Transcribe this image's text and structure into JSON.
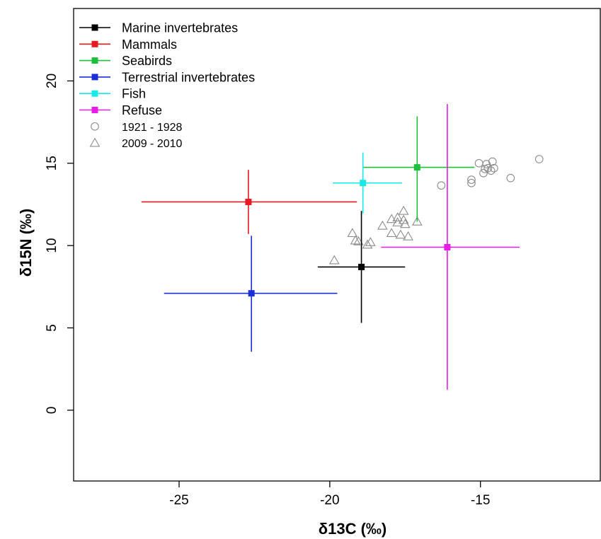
{
  "chart_data": {
    "type": "scatter",
    "xlabel": "δ13C (‰)",
    "ylabel": "δ15N (‰)",
    "xlim": [
      -28.5,
      -11.0
    ],
    "ylim": [
      -4.3,
      24.4
    ],
    "xticks": [
      -25,
      -20,
      -15
    ],
    "yticks": [
      0,
      5,
      10,
      15,
      20
    ],
    "grid": false,
    "legend_position": "top-left",
    "series": [
      {
        "name": "Marine invertebrates",
        "color": "#000000",
        "x": -18.95,
        "y": 8.7,
        "x_range": [
          -20.4,
          -17.5
        ],
        "y_range": [
          5.3,
          12.1
        ]
      },
      {
        "name": "Mammals",
        "color": "#e8191f",
        "x": -22.7,
        "y": 12.65,
        "x_range": [
          -26.25,
          -19.1
        ],
        "y_range": [
          10.7,
          14.6
        ]
      },
      {
        "name": "Seabirds",
        "color": "#1dbf3c",
        "x": -17.1,
        "y": 14.75,
        "x_range": [
          -18.9,
          -15.2
        ],
        "y_range": [
          11.45,
          17.85
        ]
      },
      {
        "name": "Terrestrial invertebrates",
        "color": "#1b2fd9",
        "x": -22.6,
        "y": 7.1,
        "x_range": [
          -25.5,
          -19.75
        ],
        "y_range": [
          3.55,
          10.6
        ]
      },
      {
        "name": "Fish",
        "color": "#18e8e8",
        "x": -18.9,
        "y": 13.8,
        "x_range": [
          -19.9,
          -17.6
        ],
        "y_range": [
          11.95,
          15.65
        ]
      },
      {
        "name": "Refuse",
        "color": "#e81be8",
        "x": -16.1,
        "y": 9.9,
        "x_range": [
          -18.3,
          -13.7
        ],
        "y_range": [
          1.25,
          18.6
        ]
      }
    ],
    "point_series": [
      {
        "name": "1921 - 1928",
        "marker": "circle",
        "color": "#8c8c8c",
        "points": [
          [
            -16.3,
            13.65
          ],
          [
            -15.3,
            14.0
          ],
          [
            -15.3,
            13.8
          ],
          [
            -15.05,
            15.0
          ],
          [
            -14.85,
            14.65
          ],
          [
            -14.9,
            14.4
          ],
          [
            -14.75,
            14.7
          ],
          [
            -14.8,
            14.95
          ],
          [
            -14.6,
            15.1
          ],
          [
            -14.65,
            14.55
          ],
          [
            -14.55,
            14.7
          ],
          [
            -14.0,
            14.1
          ],
          [
            -13.05,
            15.25
          ]
        ]
      },
      {
        "name": "2009 - 2010",
        "marker": "triangle",
        "color": "#8c8c8c",
        "points": [
          [
            -19.85,
            9.1
          ],
          [
            -19.25,
            10.75
          ],
          [
            -19.15,
            10.3
          ],
          [
            -19.05,
            10.25
          ],
          [
            -18.75,
            10.05
          ],
          [
            -18.65,
            10.2
          ],
          [
            -18.25,
            11.2
          ],
          [
            -17.95,
            11.6
          ],
          [
            -17.75,
            11.7
          ],
          [
            -17.75,
            11.4
          ],
          [
            -17.55,
            11.55
          ],
          [
            -17.5,
            11.3
          ],
          [
            -17.55,
            12.1
          ],
          [
            -17.1,
            11.45
          ],
          [
            -17.95,
            10.75
          ],
          [
            -17.65,
            10.65
          ],
          [
            -17.4,
            10.55
          ]
        ]
      }
    ]
  }
}
